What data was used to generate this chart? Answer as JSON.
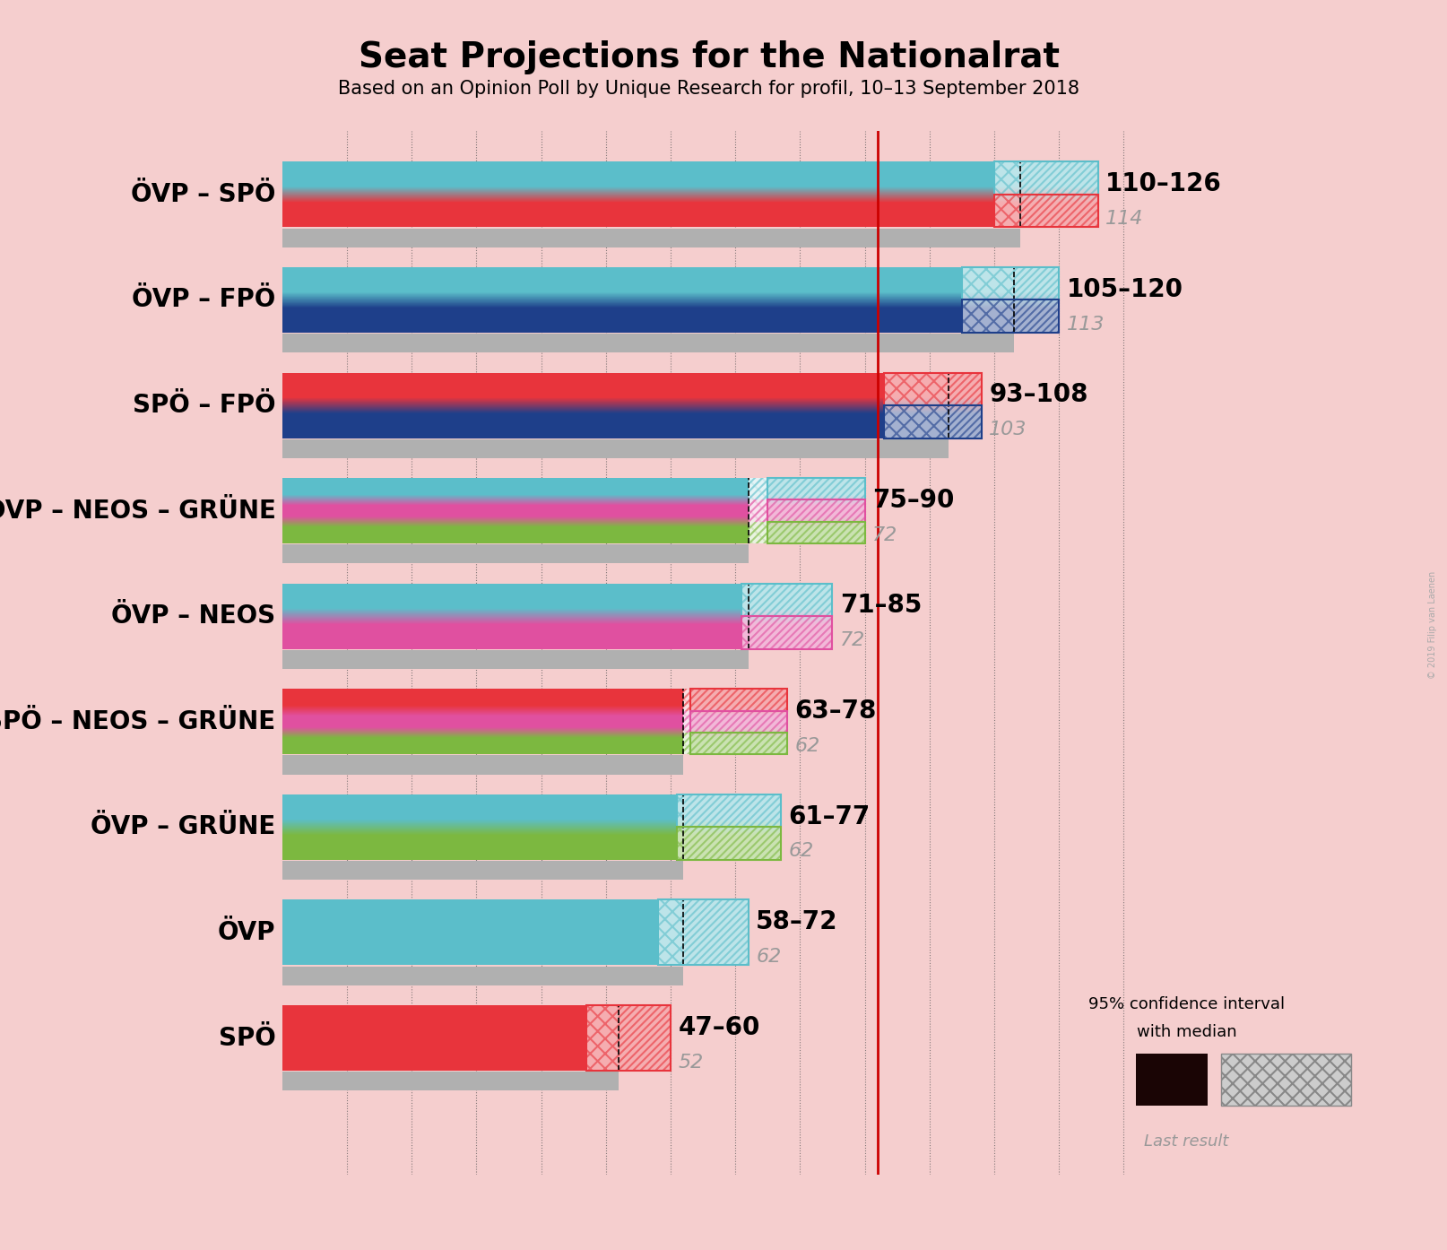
{
  "title": "Seat Projections for the Nationalrat",
  "subtitle": "Based on an Opinion Poll by Unique Research for profil, 10–13 September 2018",
  "copyright": "© 2019 Filip van Laenen",
  "background_color": "#f5cece",
  "coalitions": [
    {
      "name": "ÖVP – SPÖ",
      "low": 110,
      "high": 126,
      "median": 114,
      "colors": [
        "#5bbeca",
        "#e8343c"
      ]
    },
    {
      "name": "ÖVP – FPÖ",
      "low": 105,
      "high": 120,
      "median": 113,
      "colors": [
        "#5bbeca",
        "#1e3f8a"
      ]
    },
    {
      "name": "SPÖ – FPÖ",
      "low": 93,
      "high": 108,
      "median": 103,
      "colors": [
        "#e8343c",
        "#1e3f8a"
      ]
    },
    {
      "name": "ÖVP – NEOS – GRÜNE",
      "low": 75,
      "high": 90,
      "median": 72,
      "colors": [
        "#5bbeca",
        "#e050a0",
        "#7cb840"
      ]
    },
    {
      "name": "ÖVP – NEOS",
      "low": 71,
      "high": 85,
      "median": 72,
      "colors": [
        "#5bbeca",
        "#e050a0"
      ]
    },
    {
      "name": "SPÖ – NEOS – GRÜNE",
      "low": 63,
      "high": 78,
      "median": 62,
      "colors": [
        "#e8343c",
        "#e050a0",
        "#7cb840"
      ]
    },
    {
      "name": "ÖVP – GRÜNE",
      "low": 61,
      "high": 77,
      "median": 62,
      "colors": [
        "#5bbeca",
        "#7cb840"
      ]
    },
    {
      "name": "ÖVP",
      "low": 58,
      "high": 72,
      "median": 62,
      "colors": [
        "#5bbeca"
      ]
    },
    {
      "name": "SPÖ",
      "low": 47,
      "high": 60,
      "median": 52,
      "colors": [
        "#e8343c"
      ]
    }
  ],
  "xmax": 133,
  "majority_line": 92,
  "bar_height": 0.62,
  "gray_bar_height": 0.18,
  "gray_bar_color": "#b0b0b0",
  "dashed_interval": 10,
  "label_fontsize": 20,
  "name_fontsize": 20,
  "median_fontsize": 16,
  "title_fontsize": 28,
  "subtitle_fontsize": 15,
  "gradient_steps": 80
}
